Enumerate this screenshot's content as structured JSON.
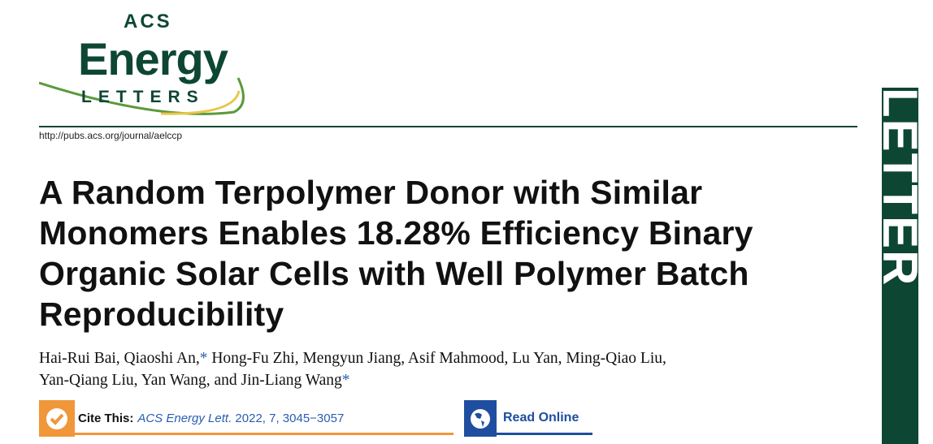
{
  "journal": {
    "logo_top": "ACS",
    "logo_main": "Energy",
    "logo_bottom": "LETTERS",
    "url": "http://pubs.acs.org/journal/aelccp",
    "article_type": "LETTER",
    "brand_color": "#0e4634"
  },
  "article": {
    "title": "A Random Terpolymer Donor with Similar Monomers Enables 18.28% Efficiency Binary Organic Solar Cells with Well Polymer Batch Reproducibility",
    "authors_line1": "Hai-Rui Bai, Qiaoshi An,",
    "authors_line1_star": "*",
    "authors_line1_rest": " Hong-Fu Zhi, Mengyun Jiang, Asif Mahmood, Lu Yan, Ming-Qiao Liu,",
    "authors_line2": "Yan-Qiang Liu, Yan Wang, and Jin-Liang Wang",
    "authors_line2_star": "*"
  },
  "cite": {
    "label": "Cite This:",
    "journal": "ACS Energy Lett.",
    "details": " 2022, 7, 3045−3057",
    "icon": "checkmark-icon",
    "color": "#f0973a"
  },
  "read_online": {
    "label": "Read Online",
    "icon": "globe-icon",
    "color": "#1f4ea0"
  }
}
